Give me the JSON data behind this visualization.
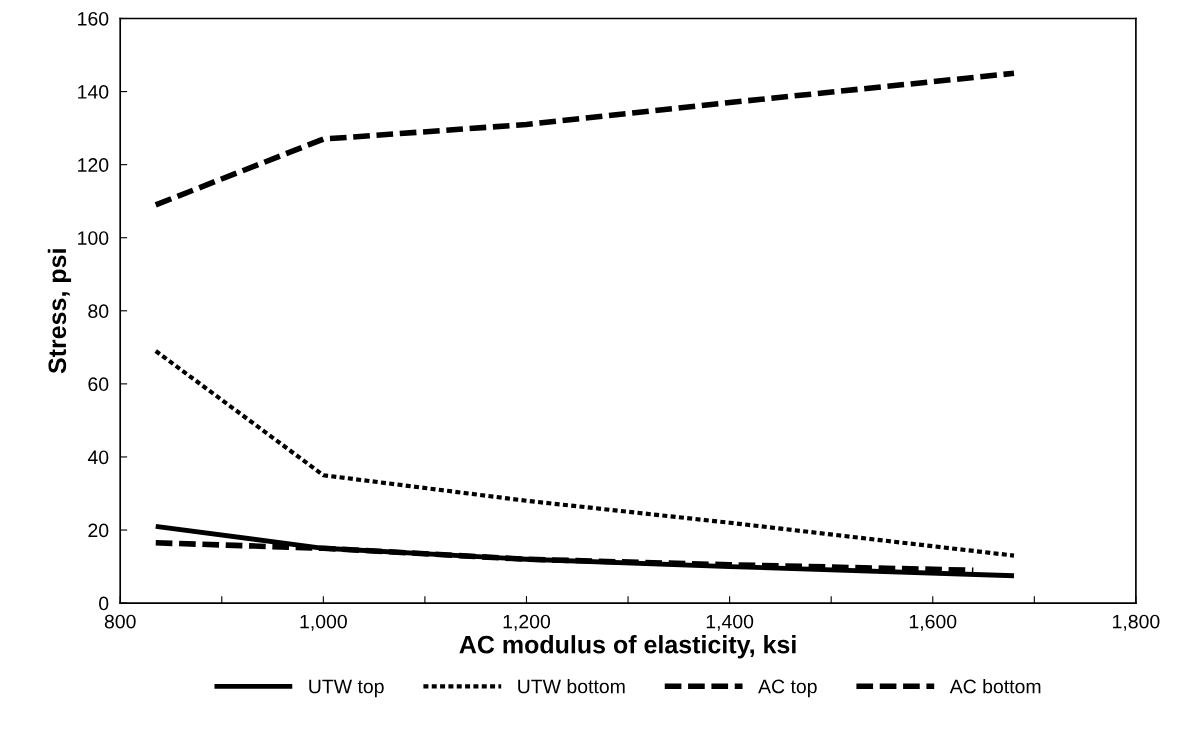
{
  "chart_data": {
    "type": "line",
    "xlabel": "AC modulus of elasticity, ksi",
    "ylabel": "Stress, psi",
    "xlim": [
      800,
      1800
    ],
    "ylim": [
      0,
      160
    ],
    "xticks": [
      {
        "value": 800,
        "label": "800"
      },
      {
        "value": 900,
        "label": null
      },
      {
        "value": 1000,
        "label": "1,000"
      },
      {
        "value": 1100,
        "label": null
      },
      {
        "value": 1200,
        "label": "1,200"
      },
      {
        "value": 1300,
        "label": null
      },
      {
        "value": 1400,
        "label": "1,400"
      },
      {
        "value": 1500,
        "label": null
      },
      {
        "value": 1600,
        "label": "1,600"
      },
      {
        "value": 1700,
        "label": null
      },
      {
        "value": 1800,
        "label": "1,800"
      }
    ],
    "yticks": [
      0,
      20,
      40,
      60,
      80,
      100,
      120,
      140,
      160
    ],
    "grid": false,
    "legend": "bottom",
    "series": [
      {
        "name": "UTW top",
        "color": "#000000",
        "line_style": "solid",
        "x": [
          835,
          1000,
          1200,
          1400,
          1680
        ],
        "values": [
          21,
          15,
          12,
          10,
          7.5
        ]
      },
      {
        "name": "UTW bottom",
        "color": "#000000",
        "line_style": "dotted",
        "x": [
          835,
          1000,
          1200,
          1400,
          1680
        ],
        "values": [
          69,
          35,
          28,
          22,
          13
        ]
      },
      {
        "name": "AC top",
        "color": "#000000",
        "line_style": "dashed",
        "x": [
          835,
          1000,
          1200,
          1400,
          1640
        ],
        "values": [
          16.5,
          15,
          12,
          10.5,
          9
        ]
      },
      {
        "name": "AC bottom",
        "color": "#000000",
        "line_style": "dashed",
        "x": [
          835,
          1000,
          1200,
          1400,
          1680
        ],
        "values": [
          109,
          127,
          131,
          137,
          145
        ]
      }
    ]
  }
}
